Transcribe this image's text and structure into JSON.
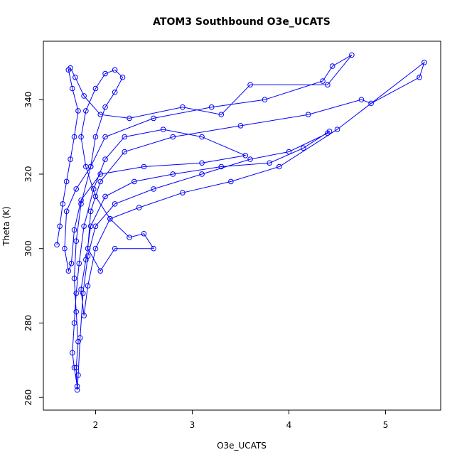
{
  "chart_data": {
    "type": "line",
    "title": "ATOM3 Southbound O3e_UCATS",
    "xlabel": "O3e_UCATS",
    "ylabel": "Theta (K)",
    "x": [
      1.6,
      1.63,
      1.66,
      1.7,
      1.74,
      1.78,
      1.82,
      1.76,
      1.72,
      1.74,
      1.79,
      1.88,
      2.05,
      2.35,
      2.9,
      3.3,
      3.6,
      4.4,
      4.65,
      4.45,
      4.35,
      3.75,
      3.2,
      2.6,
      2.1,
      1.95,
      1.85,
      1.8,
      1.78,
      1.8,
      1.82,
      1.8,
      1.81,
      1.82,
      1.84,
      1.87,
      1.92,
      2.0,
      2.2,
      2.6,
      3.1,
      3.6,
      4.0,
      4.4,
      4.42,
      4.15,
      3.8,
      3.3,
      2.8,
      2.4,
      2.1,
      1.95,
      1.9,
      1.85,
      1.88,
      1.92,
      2.0,
      2.15,
      2.45,
      2.9,
      3.4,
      3.9,
      4.5,
      5.4,
      5.35,
      4.85,
      4.75,
      4.2,
      3.5,
      2.8,
      2.3,
      2.05,
      1.95,
      1.92,
      2.05,
      2.2,
      2.6,
      2.5,
      2.35,
      2.15,
      2.0,
      1.9,
      1.85,
      1.9,
      2.0,
      2.1,
      2.2,
      2.28,
      2.2,
      2.1,
      2.0,
      1.95,
      1.8,
      1.7,
      1.68,
      1.72,
      1.75,
      1.78,
      1.85,
      2.05,
      2.5,
      3.1,
      3.55,
      3.1,
      2.7,
      2.3,
      2.1,
      1.98,
      1.88,
      1.83,
      1.8,
      1.78,
      1.76,
      1.78,
      1.81
    ],
    "values": [
      301,
      306,
      312,
      318,
      324,
      330,
      337,
      343,
      348,
      348.5,
      346,
      341,
      336,
      335,
      338,
      336,
      344,
      344,
      352,
      349,
      345,
      340,
      338,
      335,
      330,
      322,
      312,
      302,
      292,
      283,
      275,
      268,
      262,
      266,
      276,
      288,
      298,
      306,
      312,
      316,
      320,
      324,
      326,
      331,
      331.5,
      327,
      323,
      322,
      320,
      318,
      314,
      306,
      297,
      289,
      282,
      290,
      300,
      308,
      311,
      315,
      318,
      322,
      332,
      350,
      346,
      339,
      340,
      336,
      333,
      330,
      326,
      318,
      310,
      300,
      294,
      300,
      300,
      304,
      303,
      308,
      314,
      322,
      330,
      337,
      343,
      347,
      348,
      346,
      342,
      338,
      330,
      322,
      316,
      310,
      300,
      294,
      296,
      305,
      313,
      320,
      322,
      323,
      325,
      330,
      332,
      330,
      324,
      316,
      306,
      296,
      288,
      280,
      272,
      268,
      263
    ],
    "color": "#0000ff",
    "xlim": [
      1.46,
      5.57
    ],
    "ylim": [
      256.6,
      355.7
    ],
    "xticks": [
      2,
      3,
      4,
      5
    ],
    "yticks": [
      260,
      280,
      300,
      320,
      340
    ]
  }
}
